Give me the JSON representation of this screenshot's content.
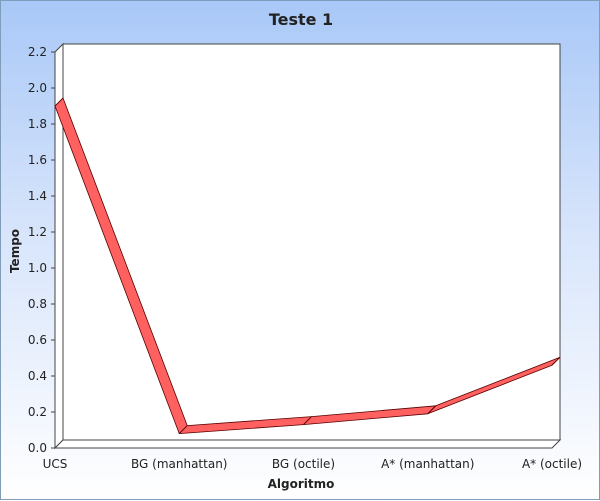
{
  "chart_data": {
    "type": "line",
    "title": "Teste 1",
    "xlabel": "Algoritmo",
    "ylabel": "Tempo",
    "categories": [
      "UCS",
      "BG (manhattan)",
      "BG (octile)",
      "A* (manhattan)",
      "A* (octile)"
    ],
    "series": [
      {
        "values": [
          1.9,
          0.08,
          0.13,
          0.19,
          0.46
        ],
        "color": "#ff6060"
      }
    ],
    "ylim": [
      0,
      2.2
    ],
    "yticks": [
      "0.0",
      "0.2",
      "0.4",
      "0.6",
      "0.8",
      "1.0",
      "1.2",
      "1.4",
      "1.6",
      "1.8",
      "2.0",
      "2.2"
    ],
    "grid": false,
    "legend": "none",
    "style": "3d-ribbon"
  }
}
